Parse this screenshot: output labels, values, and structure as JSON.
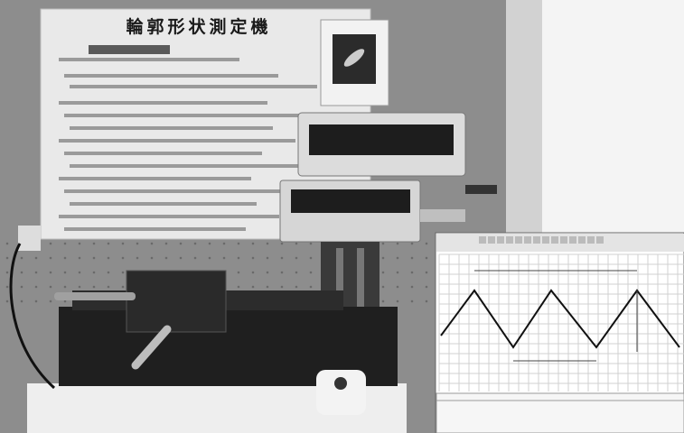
{
  "photo": {
    "board_title": "輪郭形状測定機"
  }
}
